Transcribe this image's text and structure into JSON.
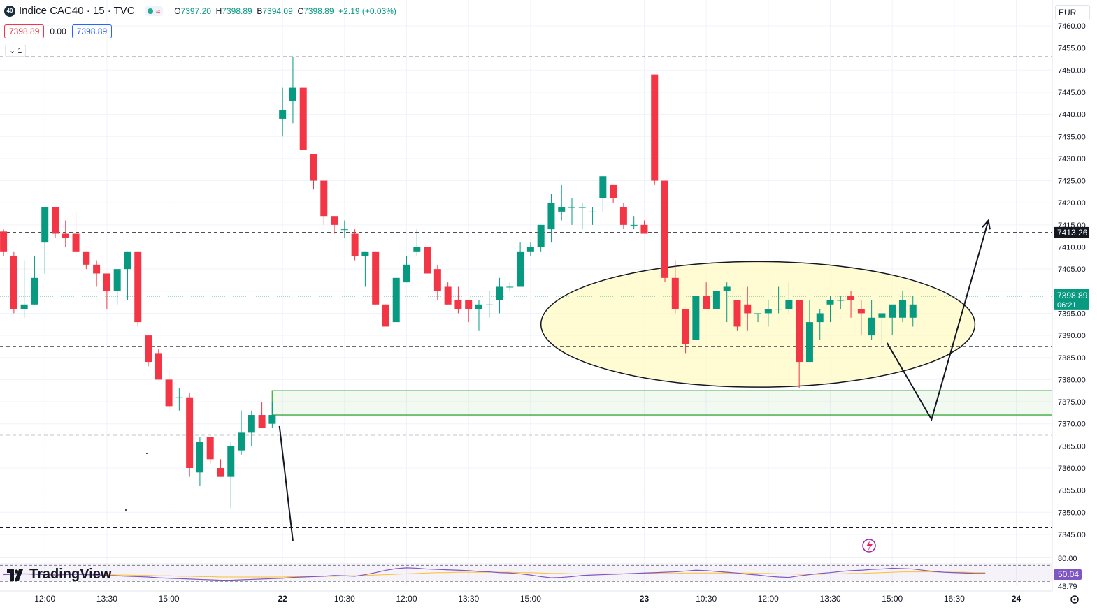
{
  "header": {
    "symbol_badge": "40",
    "title": "Indice CAC40 · 15 · TVC",
    "market_icon": "market-open-icon",
    "ohlc": [
      {
        "key": "O",
        "value": "7397.20"
      },
      {
        "key": "H",
        "value": "7398.89"
      },
      {
        "key": "B",
        "value": "7394.09"
      },
      {
        "key": "C",
        "value": "7398.89"
      }
    ],
    "change": "+2.19 (+0.03%)"
  },
  "price_row": {
    "sell": "7398.89",
    "spread": "0.00",
    "buy": "7398.89"
  },
  "collapse_label": "1",
  "currency": "EUR",
  "branding": "TradingView",
  "colors": {
    "up": "#089981",
    "down": "#f23645",
    "zone": "#4caf50",
    "ellipse_fill": "#fff9c4",
    "rsi": "#7e57c2"
  },
  "chart_data": {
    "type": "candlestick",
    "symbol": "Indice CAC40",
    "interval": "15",
    "ylim": [
      7342,
      7461
    ],
    "y_ticks": [
      "7460.00",
      "7455.00",
      "7450.00",
      "7445.00",
      "7440.00",
      "7435.00",
      "7430.00",
      "7425.00",
      "7420.00",
      "7415.00",
      "7410.00",
      "7405.00",
      "7400.00",
      "7395.00",
      "7390.00",
      "7385.00",
      "7380.00",
      "7375.00",
      "7370.00",
      "7365.00",
      "7360.00",
      "7355.00",
      "7350.00",
      "7345.00"
    ],
    "x_ticks": [
      {
        "label": "12:00",
        "bar": 4.0
      },
      {
        "label": "13:30",
        "bar": 10.0
      },
      {
        "label": "15:00",
        "bar": 16.0
      },
      {
        "label": "22",
        "bar": 27.0,
        "bold": true
      },
      {
        "label": "10:30",
        "bar": 33.0
      },
      {
        "label": "12:00",
        "bar": 39.0
      },
      {
        "label": "13:30",
        "bar": 45.0
      },
      {
        "label": "15:00",
        "bar": 51.0
      },
      {
        "label": "23",
        "bar": 62.0,
        "bold": true
      },
      {
        "label": "10:30",
        "bar": 68.0
      },
      {
        "label": "12:00",
        "bar": 74.0
      },
      {
        "label": "13:30",
        "bar": 80.0
      },
      {
        "label": "15:00",
        "bar": 86.0
      },
      {
        "label": "16:30",
        "bar": 92.0
      },
      {
        "label": "24",
        "bar": 98.0,
        "bold": true
      }
    ],
    "candles": [
      [
        7413.5,
        7414,
        7408,
        7409
      ],
      [
        7408,
        7409,
        7395,
        7396
      ],
      [
        7396,
        7407,
        7394,
        7397
      ],
      [
        7397,
        7408,
        7397,
        7403
      ],
      [
        7411,
        7419,
        7404,
        7419
      ],
      [
        7419,
        7419,
        7412,
        7413
      ],
      [
        7413,
        7416,
        7410,
        7412
      ],
      [
        7413,
        7418,
        7408,
        7409
      ],
      [
        7409,
        7409,
        7405,
        7406
      ],
      [
        7406,
        7407,
        7401,
        7404
      ],
      [
        7404,
        7404,
        7396,
        7400
      ],
      [
        7400,
        7405,
        7397,
        7405
      ],
      [
        7405,
        7409,
        7398,
        7409
      ],
      [
        7409,
        7409,
        7392,
        7393
      ],
      [
        7390,
        7390,
        7383,
        7384
      ],
      [
        7386,
        7387,
        7380,
        7380
      ],
      [
        7380,
        7382,
        7373,
        7374
      ],
      [
        7376,
        7378,
        7373,
        7376
      ],
      [
        7376,
        7377,
        7358,
        7360
      ],
      [
        7359,
        7367,
        7356,
        7366
      ],
      [
        7367,
        7367,
        7361,
        7362
      ],
      [
        7360,
        7362,
        7358,
        7358
      ],
      [
        7358,
        7366,
        7351,
        7365
      ],
      [
        7364,
        7373,
        7363,
        7368
      ],
      [
        7368,
        7373,
        7365,
        7372
      ],
      [
        7372,
        7375,
        7369,
        7369
      ],
      [
        7370,
        7375,
        7369,
        7372
      ],
      [
        7439,
        7446,
        7435,
        7441
      ],
      [
        7443,
        7453,
        7438,
        7446
      ],
      [
        7446,
        7446,
        7432,
        7432
      ],
      [
        7431,
        7431,
        7423,
        7425
      ],
      [
        7425,
        7425,
        7415,
        7417
      ],
      [
        7417,
        7417,
        7413,
        7415
      ],
      [
        7414,
        7416,
        7412,
        7414
      ],
      [
        7413,
        7414,
        7407,
        7408
      ],
      [
        7408,
        7409,
        7401,
        7409
      ],
      [
        7409,
        7409,
        7397,
        7397
      ],
      [
        7397,
        7397,
        7392,
        7392
      ],
      [
        7393,
        7403,
        7393,
        7403
      ],
      [
        7402,
        7408,
        7402,
        7406
      ],
      [
        7409,
        7414,
        7408,
        7410
      ],
      [
        7410,
        7410,
        7404,
        7404
      ],
      [
        7405,
        7406,
        7398,
        7400
      ],
      [
        7401,
        7402,
        7397,
        7397
      ],
      [
        7398,
        7401,
        7395,
        7396
      ],
      [
        7398,
        7398,
        7393,
        7396
      ],
      [
        7396,
        7398,
        7391,
        7397
      ],
      [
        7397,
        7400,
        7394,
        7397
      ],
      [
        7398,
        7403,
        7395,
        7401
      ],
      [
        7401,
        7402,
        7400,
        7401
      ],
      [
        7401,
        7411,
        7401,
        7409
      ],
      [
        7409,
        7411,
        7408,
        7410
      ],
      [
        7410,
        7415,
        7409,
        7415
      ],
      [
        7414,
        7422,
        7411,
        7420
      ],
      [
        7418,
        7424,
        7416,
        7419
      ],
      [
        7419,
        7421,
        7415,
        7419
      ],
      [
        7419,
        7420,
        7414,
        7419
      ],
      [
        7418,
        7419,
        7415,
        7418
      ],
      [
        7421,
        7426,
        7418,
        7426
      ],
      [
        7424,
        7424,
        7420,
        7421
      ],
      [
        7419,
        7420,
        7414,
        7415
      ],
      [
        7415,
        7417,
        7414,
        7415
      ],
      [
        7415,
        7416,
        7413,
        7413
      ],
      [
        7449,
        7449,
        7424,
        7425
      ],
      [
        7425,
        7425,
        7402,
        7403
      ],
      [
        7403,
        7407,
        7395,
        7396
      ],
      [
        7396,
        7396,
        7386,
        7388
      ],
      [
        7389,
        7399,
        7389,
        7399
      ],
      [
        7399,
        7402,
        7396,
        7396
      ],
      [
        7396,
        7400,
        7396,
        7400
      ],
      [
        7400,
        7402,
        7393,
        7401
      ],
      [
        7398,
        7398,
        7391,
        7392
      ],
      [
        7397,
        7401,
        7391,
        7395
      ],
      [
        7395,
        7395,
        7393,
        7395
      ],
      [
        7395,
        7398,
        7392,
        7396
      ],
      [
        7396,
        7401,
        7395,
        7396
      ],
      [
        7396,
        7402,
        7395,
        7398
      ],
      [
        7398,
        7398,
        7378,
        7384
      ],
      [
        7384,
        7398,
        7384,
        7393
      ],
      [
        7393,
        7396,
        7389,
        7395
      ],
      [
        7397,
        7399,
        7393,
        7398
      ],
      [
        7398,
        7399,
        7396,
        7398
      ],
      [
        7399,
        7400,
        7394,
        7398
      ],
      [
        7396,
        7398,
        7390,
        7395
      ],
      [
        7390,
        7398,
        7389,
        7394
      ],
      [
        7394,
        7395,
        7388,
        7395
      ],
      [
        7394,
        7396,
        7390,
        7397
      ],
      [
        7394,
        7400,
        7393,
        7398
      ],
      [
        7394,
        7399,
        7392,
        7397
      ]
    ],
    "last_price": {
      "value": 7398.89,
      "label": "7398.89",
      "countdown": "06:21"
    },
    "horizontal_lines": [
      {
        "value": 7453.0
      },
      {
        "value": 7413.26,
        "label": "7413.26"
      },
      {
        "value": 7387.5
      },
      {
        "value": 7367.5
      },
      {
        "value": 7346.5
      }
    ],
    "zone": {
      "start_bar": 26.0,
      "top": 7377.5,
      "bottom": 7372.0
    },
    "ellipse": {
      "center_bar": 73.0,
      "center_value": 7392.5,
      "half_width_bars": 21.0,
      "half_height_value": 14.2
    },
    "projection_path": [
      {
        "bar": 26.7,
        "value": 7369.5
      },
      {
        "bar": 28.0,
        "value": 7343.5
      }
    ],
    "projection_arrow": [
      {
        "bar": 85.5,
        "value": 7388.3
      },
      {
        "bar": 89.8,
        "value": 7371.0
      },
      {
        "bar": 95.3,
        "value": 7416.0
      }
    ],
    "rsi": {
      "value_label": "50.04",
      "ticks": [
        "80.00",
        "48.79"
      ],
      "levels": [
        70,
        30
      ],
      "values": [
        47,
        48,
        49,
        48,
        47,
        46,
        47,
        48,
        47,
        46,
        45,
        44,
        43,
        42,
        41,
        39,
        38,
        37,
        36,
        35,
        34,
        33,
        33,
        34,
        35,
        36,
        37,
        38,
        40,
        41,
        42,
        43,
        45,
        44,
        43,
        47,
        52,
        58,
        62,
        64,
        63,
        61,
        60,
        59,
        58,
        57,
        55,
        54,
        52,
        51,
        49,
        46,
        42,
        39,
        40,
        42,
        45,
        46,
        47,
        48,
        49,
        50,
        51,
        52,
        53,
        54,
        56,
        58,
        57,
        55,
        53,
        51,
        48,
        46,
        43,
        41,
        40,
        44,
        47,
        50,
        52,
        55,
        57,
        58,
        60,
        61,
        63,
        62,
        61,
        58,
        55,
        53,
        52,
        51,
        50,
        50
      ],
      "ma": [
        49,
        49,
        49,
        49,
        48,
        48,
        48,
        48,
        47,
        47,
        47,
        46,
        46,
        45,
        45,
        44,
        44,
        43,
        43,
        42,
        42,
        41,
        41,
        41,
        41,
        41,
        41,
        41,
        42,
        42,
        42,
        43,
        43,
        44,
        44,
        45,
        46,
        47,
        48,
        49,
        50,
        51,
        52,
        52,
        53,
        53,
        53,
        53,
        53,
        53,
        52,
        52,
        51,
        50,
        50,
        49,
        49,
        49,
        49,
        49,
        49,
        49,
        50,
        50,
        50,
        50,
        51,
        51,
        51,
        51,
        51,
        51,
        51,
        50,
        50,
        49,
        49,
        48,
        48,
        48,
        49,
        49,
        50,
        50,
        51,
        52,
        53,
        54,
        54,
        54,
        54,
        53,
        53,
        53,
        52,
        52
      ]
    }
  }
}
